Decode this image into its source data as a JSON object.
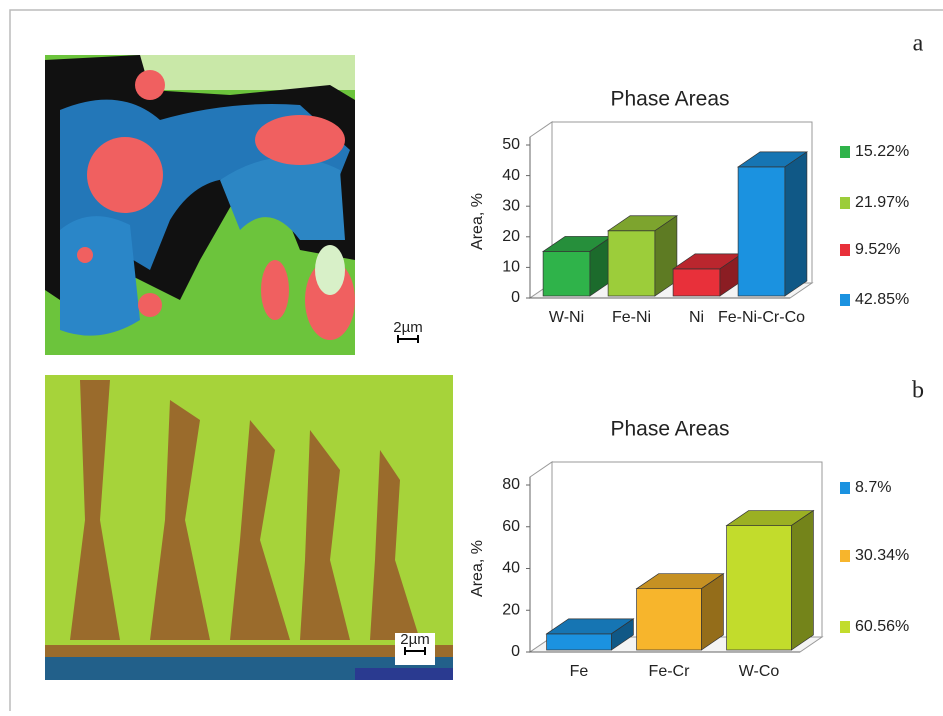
{
  "panels": [
    {
      "label": "a",
      "scale_bar": "2µm"
    },
    {
      "label": "b",
      "scale_bar": "2µm"
    }
  ],
  "chart_data": [
    {
      "type": "bar3d",
      "title": "Phase Areas",
      "ylabel": "Area, %",
      "categories": [
        "W-Ni",
        "Fe-Ni",
        "Ni",
        "Fe-Ni-Cr-Co"
      ],
      "values": [
        15.22,
        21.97,
        9.52,
        42.85
      ],
      "value_labels": [
        "15.22%",
        "21.97%",
        "9.52%",
        "42.85%"
      ],
      "colors": [
        "#2fb34a",
        "#9ccd3a",
        "#e8303a",
        "#1b92e0"
      ],
      "ylim": [
        0,
        50
      ],
      "yticks": [
        0,
        10,
        20,
        30,
        40,
        50
      ]
    },
    {
      "type": "bar3d",
      "title": "Phase Areas",
      "ylabel": "Area, %",
      "categories": [
        "Fe",
        "Fe-Cr",
        "W-Co"
      ],
      "values": [
        8.7,
        30.34,
        60.56
      ],
      "value_labels": [
        "8.7%",
        "30.34%",
        "60.56%"
      ],
      "colors": [
        "#1b92e0",
        "#f7b52c",
        "#c2dc2c"
      ],
      "ylim": [
        0,
        80
      ],
      "yticks": [
        0,
        20,
        40,
        60,
        80
      ]
    }
  ]
}
